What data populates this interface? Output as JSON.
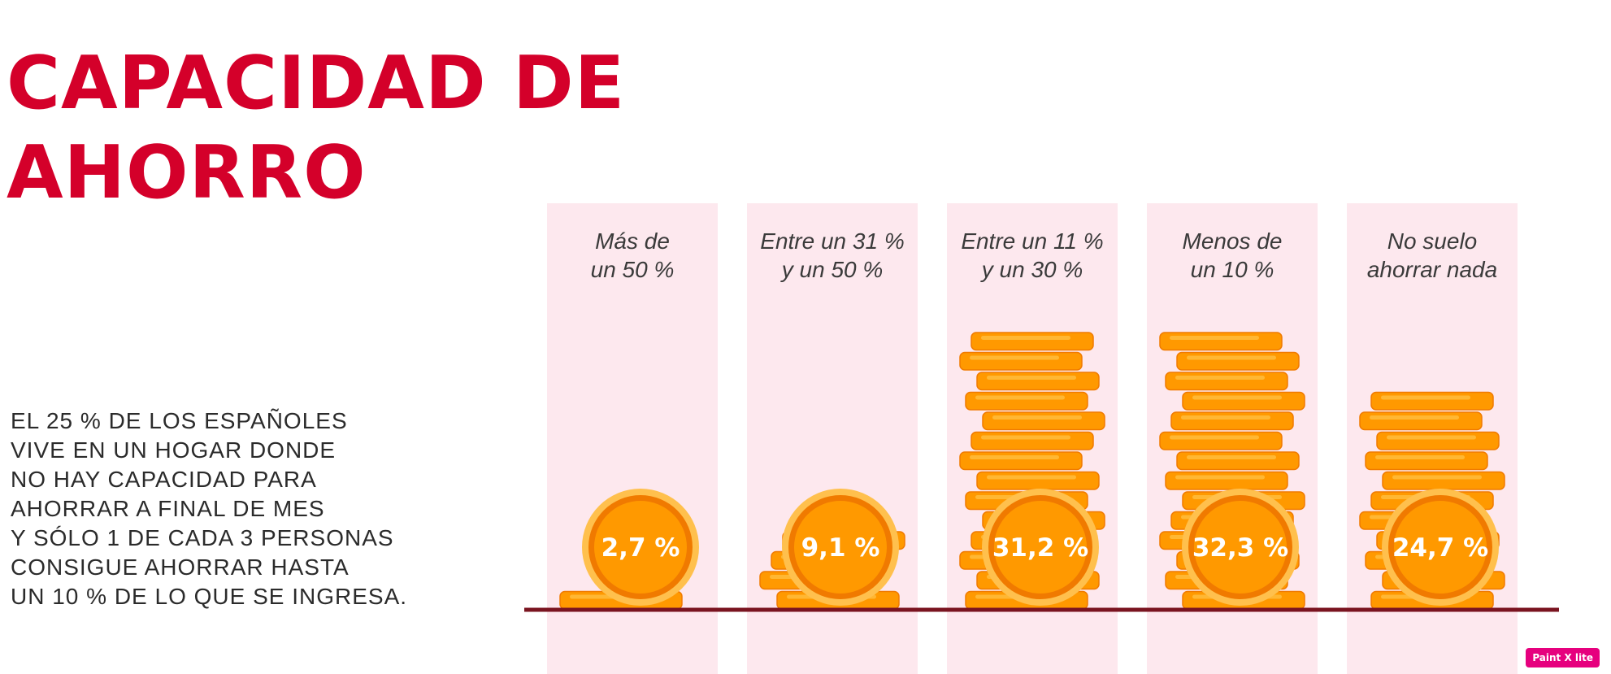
{
  "title": {
    "line1": "CAPACIDAD DE",
    "line2": "AHORRO"
  },
  "body_text": [
    "EL 25 % DE LOS ESPAÑOLES",
    "VIVE EN UN HOGAR DONDE",
    "NO HAY CAPACIDAD PARA",
    "AHORRAR A FINAL DE MES",
    "Y SÓLO 1 DE CADA 3 PERSONAS",
    "CONSIGUE AHORRAR HASTA",
    "UN 10 % DE LO QUE SE INGRESA."
  ],
  "badge": "Paint X lite",
  "colors": {
    "title": "#d4002a",
    "column_bg": "#fde8ee",
    "coin": "#ff9900",
    "coin_rim": "#f07a00",
    "baseline": "#7a1420"
  },
  "chart_data": {
    "type": "bar",
    "categories": [
      [
        "Más de",
        "un 50 %"
      ],
      [
        "Entre un 31 %",
        "y un 50 %"
      ],
      [
        "Entre un 11 %",
        "y un 30 %"
      ],
      [
        "Menos de",
        "un 10 %"
      ],
      [
        "No suelo",
        "ahorrar nada"
      ]
    ],
    "values": [
      2.7,
      9.1,
      31.2,
      32.3,
      24.7
    ],
    "value_labels": [
      "2,7 %",
      "9,1 %",
      "31,2 %",
      "32,3 %",
      "24,7 %"
    ],
    "unit": "%",
    "title": "",
    "xlabel": "",
    "ylabel": "",
    "grid": false,
    "legend": "none"
  }
}
